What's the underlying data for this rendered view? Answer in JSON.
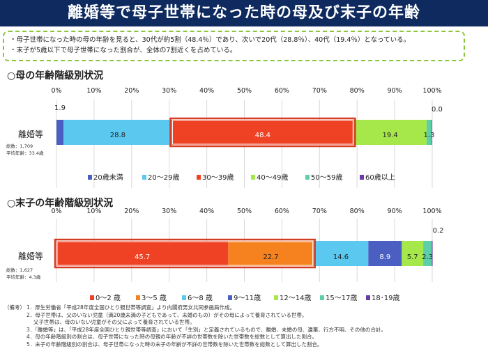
{
  "title": "離婚等で母子世帯になった時の母及び末子の年齢",
  "summary": [
    "・母子世帯になった時の母の年齢を見ると、30代が約5割（48.4％）であり、次いで20代（28.8％）、40代（19.4％）となっている。",
    "・末子が5歳以下で母子世帯になった割合が、全体の7割近くを占めている。"
  ],
  "chart_data": [
    {
      "type": "bar",
      "orientation": "horizontal",
      "stacked": true,
      "title": "○母の年齢階級別状況",
      "categories": [
        "離婚等"
      ],
      "note": [
        "総数：1,709",
        "平均年齢：33.4歳"
      ],
      "xticks": [
        "0%",
        "10%",
        "20%",
        "30%",
        "40%",
        "50%",
        "60%",
        "70%",
        "80%",
        "90%",
        "100%"
      ],
      "xlim": [
        0,
        100
      ],
      "grid": true,
      "legend": "bottom",
      "series": [
        {
          "name": "20歳未満",
          "values": [
            1.9
          ],
          "label": "1.9",
          "color": "#4a5fc1"
        },
        {
          "name": "20～29歳",
          "values": [
            28.8
          ],
          "label": "28.8",
          "color": "#5bc8f0"
        },
        {
          "name": "30～39歳",
          "values": [
            48.4
          ],
          "label": "48.4",
          "color": "#ef4123"
        },
        {
          "name": "40～49歳",
          "values": [
            19.4
          ],
          "label": "19.4",
          "color": "#a6e84a"
        },
        {
          "name": "50～59歳",
          "values": [
            1.3
          ],
          "label": "1.3",
          "color": "#5ccfa8"
        },
        {
          "name": "60歳以上",
          "values": [
            0.0
          ],
          "label": "0.0",
          "color": "#6a3aa8"
        }
      ],
      "highlight": [
        2
      ]
    },
    {
      "type": "bar",
      "orientation": "horizontal",
      "stacked": true,
      "title": "○末子の年齢階級別状況",
      "categories": [
        "離婚等"
      ],
      "note": [
        "総数：1,627",
        "平均年齢：4.3歳"
      ],
      "xticks": [
        "0%",
        "10%",
        "20%",
        "30%",
        "40%",
        "50%",
        "60%",
        "70%",
        "80%",
        "90%",
        "100%"
      ],
      "xlim": [
        0,
        100
      ],
      "grid": true,
      "legend": "bottom",
      "series": [
        {
          "name": "0～2 歳",
          "values": [
            45.7
          ],
          "label": "45.7",
          "color": "#ef4123"
        },
        {
          "name": "3～5 歳",
          "values": [
            22.7
          ],
          "label": "22.7",
          "color": "#f5821f"
        },
        {
          "name": "6～8 歳",
          "values": [
            14.6
          ],
          "label": "14.6",
          "color": "#5bc8f0"
        },
        {
          "name": "9～11歳",
          "values": [
            8.9
          ],
          "label": "8.9",
          "color": "#4a5fc1"
        },
        {
          "name": "12～14歳",
          "values": [
            5.7
          ],
          "label": "5.7",
          "color": "#a6e84a"
        },
        {
          "name": "15～17歳",
          "values": [
            2.3
          ],
          "label": "2.3",
          "color": "#5ccfa8"
        },
        {
          "name": "18･19歳",
          "values": [
            0.2
          ],
          "label": "0.2",
          "color": "#6a3aa8"
        }
      ],
      "highlight": [
        0,
        1
      ]
    }
  ],
  "notes": {
    "label": "（備考）",
    "items": [
      "1．厚生労働省「平成28年度全国ひとり親世帯等調査」より内閣府男女共同参画局作成。",
      "2．母子世帯は、父のいない児童（満20歳未満の子どもであって、未婚のもの）がその母によって養育されている世帯。",
      "　  父子世帯は、母のいない児童がその父によって養育されている世帯。",
      "3．「離婚等」は、「平成28年度全国ひとり親世帯等調査」において「生別」と定義されているもので、離婚、未婚の母、遺棄、行方不明、その他の合計。",
      "4．母の年齢階級別の割合は、母子世帯になった時の母親の年齢が不詳の世帯数を除いた世帯数を総数として算出した割合。",
      "5．末子の年齢階級別の割合は、母子世帯になった時の末子の年齢が不詳の世帯数を除いた世帯数を総数として算出した割合。"
    ]
  }
}
